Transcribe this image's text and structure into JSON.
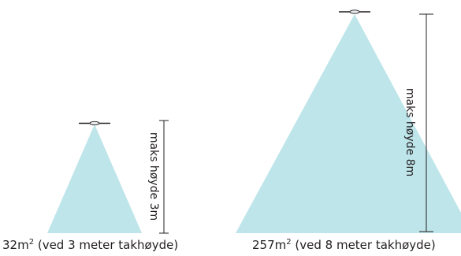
{
  "colors": {
    "beam": "#bde5ea",
    "line": "#231f20",
    "lamp_fill": "#e6e7e8"
  },
  "small": {
    "height_label": "maks høyde 3m",
    "area_value": "32m",
    "area_exponent": "2",
    "area_suffix": " (ved 3 meter takhøyde)"
  },
  "large": {
    "height_label": "maks høyde 8m",
    "area_value": "257m",
    "area_exponent": "2",
    "area_suffix": " (ved 8 meter takhøyde)"
  }
}
